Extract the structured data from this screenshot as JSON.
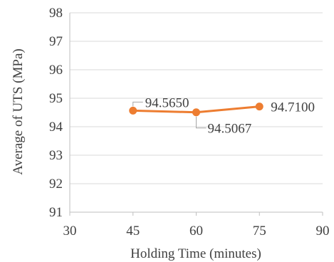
{
  "chart_data": {
    "type": "line",
    "title": "",
    "xlabel": "Holding Time (minutes)",
    "ylabel": "Average of UTS (MPa)",
    "xlim": [
      30,
      90
    ],
    "ylim": [
      91,
      98
    ],
    "x_ticks": [
      "30",
      "45",
      "60",
      "75",
      "90"
    ],
    "y_ticks": [
      "91",
      "92",
      "93",
      "94",
      "95",
      "96",
      "97",
      "98"
    ],
    "grid": "horizontal",
    "legend": "none",
    "series": [
      {
        "x": [
          45,
          60,
          75
        ],
        "values": [
          94.565,
          94.5067,
          94.71
        ],
        "labels": [
          "94.5650",
          "94.5067",
          "94.7100"
        ],
        "color": "#ED7D31"
      }
    ]
  }
}
